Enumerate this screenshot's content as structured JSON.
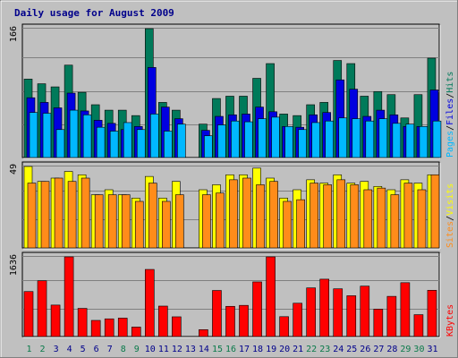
{
  "chart_data": {
    "type": "bar",
    "title": "Daily usage for August 2009",
    "days": [
      "1",
      "2",
      "3",
      "4",
      "5",
      "6",
      "7",
      "8",
      "9",
      "10",
      "11",
      "12",
      "13",
      "14",
      "15",
      "16",
      "17",
      "18",
      "19",
      "20",
      "21",
      "22",
      "23",
      "24",
      "25",
      "26",
      "27",
      "28",
      "29",
      "30",
      "31"
    ],
    "weekend_days": [
      1,
      2,
      8,
      9,
      15,
      16,
      22,
      23,
      29,
      30
    ],
    "panels": [
      {
        "name": "hits-files-pages",
        "ymax_label": "166",
        "ymax": 166,
        "legend": [
          "Pages",
          "/",
          "Files",
          "/",
          "Hits"
        ],
        "series": [
          {
            "name": "Hits",
            "color": "#007a5a",
            "values": [
              101,
              95,
              91,
              119,
              84,
              68,
              61,
              61,
              54,
              166,
              71,
              61,
              0,
              43,
              76,
              79,
              79,
              102,
              121,
              56,
              54,
              68,
              71,
              125,
              121,
              79,
              85,
              81,
              51,
              81,
              128
            ]
          },
          {
            "name": "Files",
            "color": "#0000e0",
            "values": [
              77,
              71,
              64,
              83,
              60,
              48,
              44,
              36,
              40,
              116,
              65,
              50,
              0,
              35,
              53,
              55,
              56,
              65,
              59,
              40,
              39,
              55,
              58,
              100,
              88,
              53,
              61,
              55,
              40,
              40,
              87
            ]
          },
          {
            "name": "Pages",
            "color": "#00b8ff",
            "values": [
              58,
              57,
              36,
              61,
              55,
              39,
              34,
              45,
              36,
              56,
              34,
              43,
              0,
              28,
              42,
              47,
              46,
              50,
              52,
              40,
              36,
              45,
              47,
              51,
              50,
              47,
              50,
              44,
              43,
              40,
              47
            ]
          }
        ]
      },
      {
        "name": "visits-sites",
        "ymax_label": "49",
        "ymax": 49,
        "legend": [
          "Sites",
          "/",
          "Visits"
        ],
        "series": [
          {
            "name": "Visits",
            "color": "#ffff00",
            "values": [
              49,
              40,
              42,
              46,
              44,
              32,
              35,
              32,
              30,
              43,
              30,
              40,
              0,
              35,
              38,
              44,
              44,
              48,
              42,
              30,
              35,
              41,
              39,
              44,
              39,
              40,
              37,
              35,
              41,
              39,
              44
            ]
          },
          {
            "name": "Sites",
            "color": "#ff8c1a",
            "values": [
              39,
              40,
              42,
              40,
              42,
              32,
              32,
              32,
              28,
              39,
              28,
              32,
              0,
              32,
              33,
              41,
              42,
              38,
              40,
              28,
              29,
              39,
              38,
              41,
              38,
              35,
              36,
              32,
              39,
              35,
              44
            ]
          }
        ]
      },
      {
        "name": "kbytes",
        "ymax_label": "1636",
        "ymax": 1636,
        "legend": [
          "KBytes"
        ],
        "series": [
          {
            "name": "KBytes",
            "color": "#ff0000",
            "values": [
              924,
              1145,
              646,
              1636,
              578,
              331,
              363,
              378,
              194,
              1378,
              625,
              405,
              0,
              141,
              946,
              620,
              640,
              1122,
              1636,
              408,
              684,
              999,
              1178,
              980,
              838,
              1035,
              562,
              825,
              1106,
              449,
              950
            ]
          }
        ]
      }
    ]
  },
  "colors": {
    "background": "#c0c0c0",
    "plot_bg": "#c0c0c0",
    "weekday_label": "#00008b",
    "weekend_label": "#0a7a4a",
    "legend_separator": "#000000"
  }
}
